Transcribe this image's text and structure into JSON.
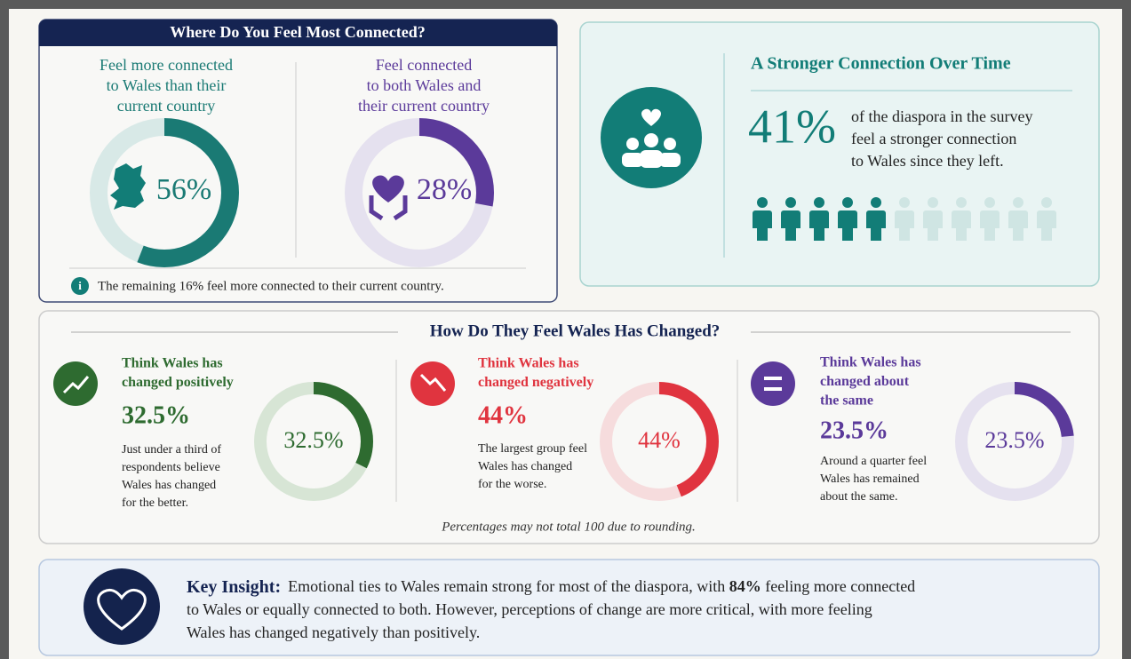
{
  "connected": {
    "title": "Where Do You Feel Most Connected?",
    "items": [
      {
        "lines": [
          "Feel more connected",
          "to Wales than their",
          "current country"
        ],
        "value": 56,
        "label": "56%"
      },
      {
        "lines": [
          "Feel connected",
          "to both Wales and",
          "their current country"
        ],
        "value": 28,
        "label": "28%"
      }
    ],
    "note": "The remaining 16% feel more connected to their current country."
  },
  "stronger": {
    "title": "A Stronger Connection Over Time",
    "value": 41,
    "label": "41%",
    "lines": [
      "of the diaspora in the survey",
      "feel a stronger connection",
      "to Wales since they left."
    ]
  },
  "changed": {
    "title": "How Do They Feel Wales Has Changed?",
    "items": [
      {
        "caption": [
          "Think Wales has",
          "changed positively"
        ],
        "value": 32.5,
        "label": "32.5%",
        "text": [
          "Just under a third of",
          "respondents believe",
          "Wales has changed",
          "for the better."
        ]
      },
      {
        "caption": [
          "Think Wales has",
          "changed negatively"
        ],
        "value": 44,
        "label": "44%",
        "text": [
          "The largest group feel",
          "Wales has changed",
          "for the worse."
        ]
      },
      {
        "caption": [
          "Think Wales has",
          "changed about",
          "the same"
        ],
        "value": 23.5,
        "label": "23.5%",
        "text": [
          "Around a quarter feel",
          "Wales has remained",
          "about the same."
        ]
      }
    ],
    "footnote": "Percentages may not total 100 due to rounding."
  },
  "insight": {
    "heading": "Key Insight:",
    "intro": "Emotional ties to Wales remain strong for most of the diaspora, with ",
    "highlight": "84%",
    "rest": " feeling more connected",
    "lines": [
      "to Wales or equally connected to both. However, perceptions of change are more critical, with more feeling",
      "Wales has changed negatively than positively."
    ]
  }
}
